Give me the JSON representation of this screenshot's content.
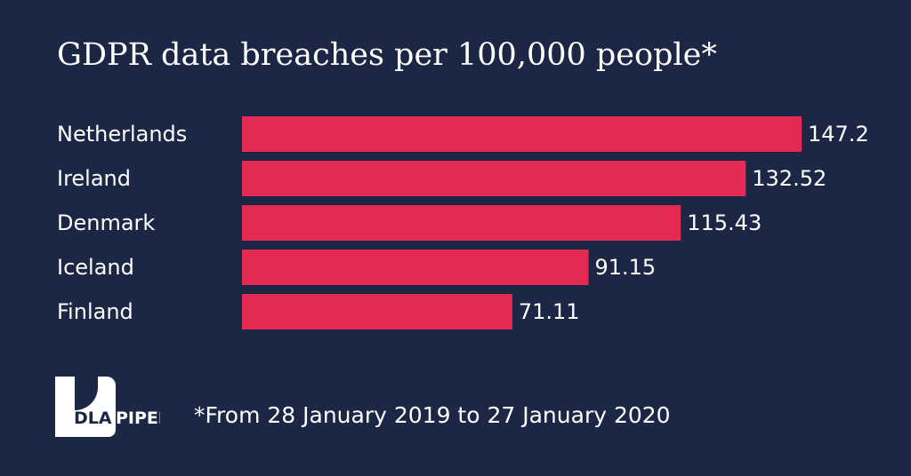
{
  "colors": {
    "background": "#1b2744",
    "bar": "#e52a54",
    "text": "#ffffff"
  },
  "chart_data": {
    "type": "bar",
    "orientation": "horizontal",
    "title": "GDPR data breaches per 100,000 people*",
    "categories": [
      "Netherlands",
      "Ireland",
      "Denmark",
      "Iceland",
      "Finland"
    ],
    "values": [
      147.2,
      132.52,
      115.43,
      91.15,
      71.11
    ],
    "value_labels": [
      "147.2",
      "132.52",
      "115.43",
      "91.15",
      "71.11"
    ],
    "xlim": [
      0,
      147.2
    ],
    "grid": false,
    "legend": "none"
  },
  "footnote": "*From 28 January 2019 to 27 January 2020",
  "logo": {
    "text": "DLA PIPER"
  }
}
